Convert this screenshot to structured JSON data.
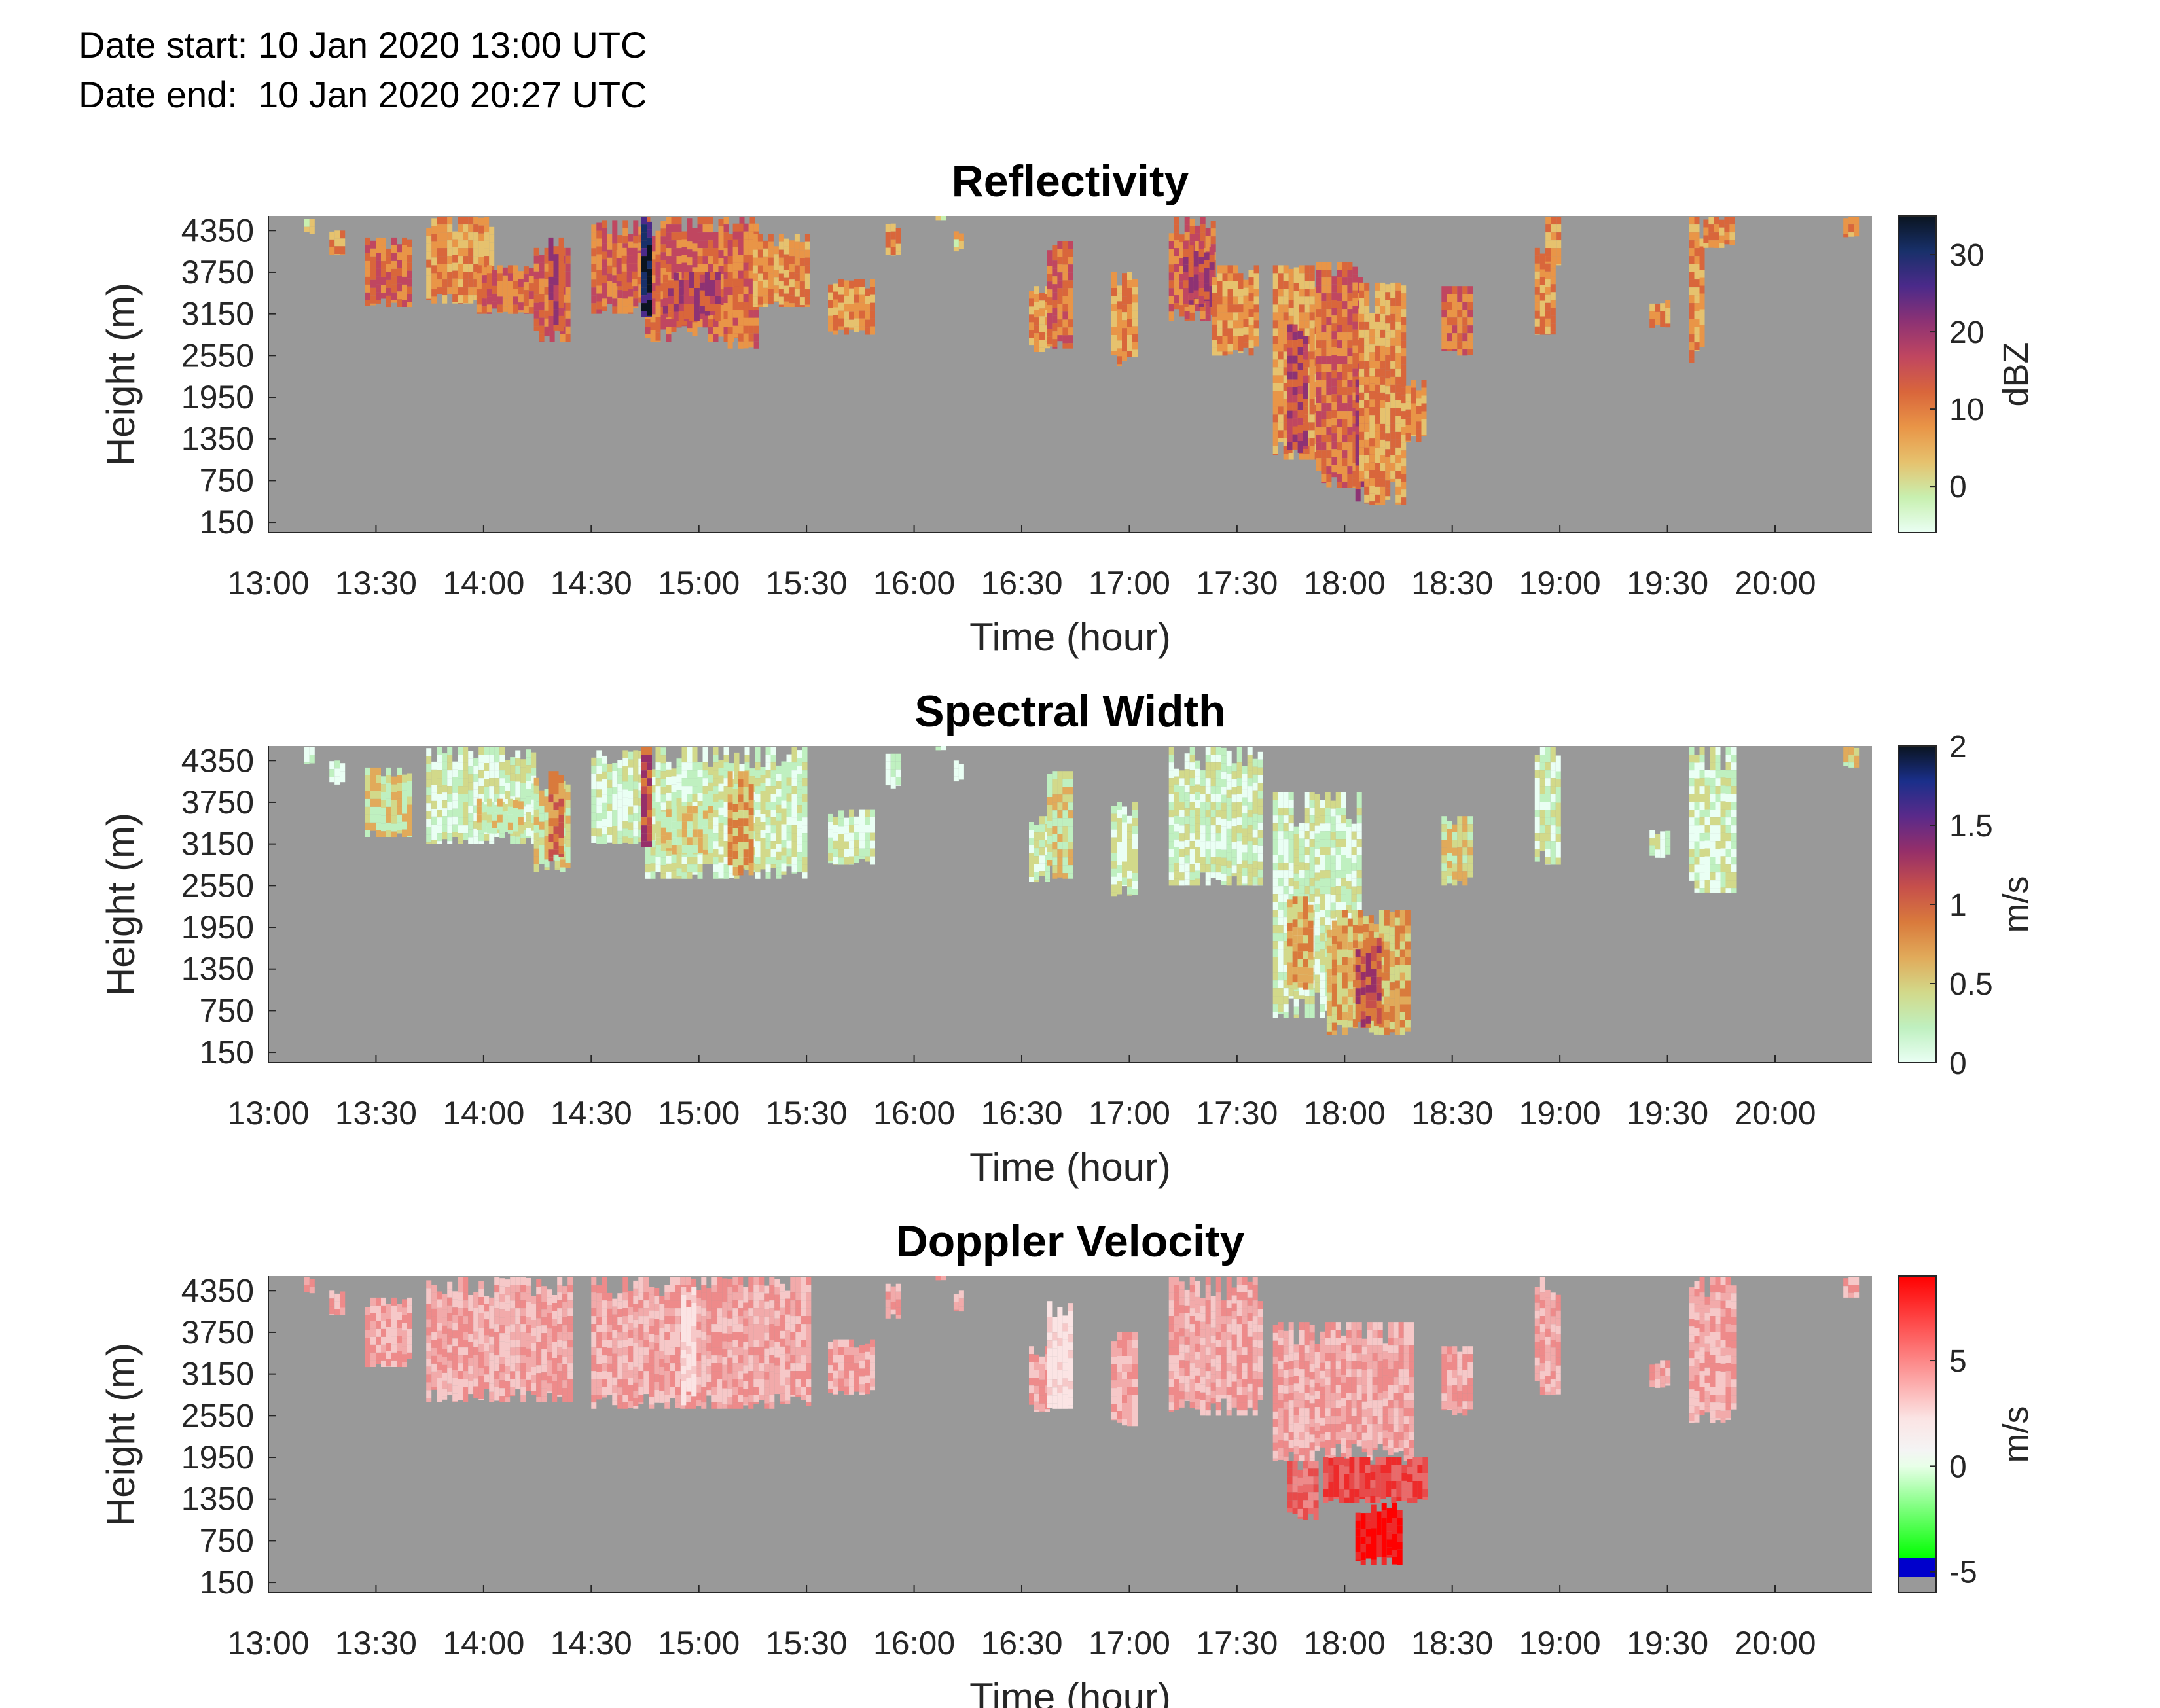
{
  "header": {
    "date_start": "Date start: 10 Jan 2020 13:00 UTC",
    "date_end": "Date end:  10 Jan 2020 20:27 UTC"
  },
  "chart_data": [
    {
      "type": "heatmap",
      "title": "Reflectivity",
      "xlabel": "Time (hour)",
      "ylabel": "Height (m)",
      "x_ticks": [
        "13:00",
        "13:30",
        "14:00",
        "14:30",
        "15:00",
        "15:30",
        "16:00",
        "16:30",
        "17:00",
        "17:30",
        "18:00",
        "18:30",
        "19:00",
        "19:30",
        "20:00"
      ],
      "y_ticks": [
        "150",
        "750",
        "1350",
        "1950",
        "2550",
        "3150",
        "3750",
        "4350"
      ],
      "colorbar": {
        "label": "dBZ",
        "ticks": [
          "0",
          "10",
          "20",
          "30"
        ],
        "range": [
          -6,
          35
        ]
      },
      "background_color": "#999999",
      "colors": [
        "#eafff4",
        "#c8f0b0",
        "#e6c26e",
        "#e99547",
        "#d9663b",
        "#c04660",
        "#8d3274",
        "#4b2a8a",
        "#18306a",
        "#0a1420"
      ],
      "echoes": [
        {
          "t0": "13:10",
          "t1": "13:12",
          "h0": 4300,
          "h1": 4550,
          "v": 4
        },
        {
          "t0": "13:17",
          "t1": "13:20",
          "h0": 4000,
          "h1": 4350,
          "v": 8
        },
        {
          "t0": "13:27",
          "t1": "13:40",
          "h0": 3250,
          "h1": 4250,
          "v": 11
        },
        {
          "t0": "13:44",
          "t1": "14:02",
          "h0": 3300,
          "h1": 4550,
          "v": 9
        },
        {
          "t0": "13:58",
          "t1": "14:14",
          "h0": 3150,
          "h1": 3850,
          "v": 12
        },
        {
          "t0": "14:14",
          "t1": "14:24",
          "h0": 2750,
          "h1": 4100,
          "v": 13
        },
        {
          "t0": "14:18",
          "t1": "14:21",
          "h0": 2900,
          "h1": 4250,
          "v": 19
        },
        {
          "t0": "14:30",
          "t1": "14:45",
          "h0": 3150,
          "h1": 4500,
          "v": 10
        },
        {
          "t0": "14:37",
          "t1": "14:45",
          "h0": 3550,
          "h1": 4100,
          "v": 14
        },
        {
          "t0": "14:45",
          "t1": "15:15",
          "h0": 2750,
          "h1": 4550,
          "v": 13
        },
        {
          "t0": "14:50",
          "t1": "15:06",
          "h0": 3050,
          "h1": 3750,
          "v": 19
        },
        {
          "t0": "14:44",
          "t1": "14:46",
          "h0": 3100,
          "h1": 4550,
          "v": 30
        },
        {
          "t0": "15:08",
          "t1": "15:16",
          "h0": 2650,
          "h1": 4450,
          "v": 13
        },
        {
          "t0": "15:15",
          "t1": "15:30",
          "h0": 3250,
          "h1": 4300,
          "v": 9
        },
        {
          "t0": "15:36",
          "t1": "15:48",
          "h0": 2850,
          "h1": 3650,
          "v": 8
        },
        {
          "t0": "15:52",
          "t1": "15:56",
          "h0": 3950,
          "h1": 4450,
          "v": 6
        },
        {
          "t0": "16:06",
          "t1": "16:08",
          "h0": 4500,
          "h1": 4560,
          "v": 3
        },
        {
          "t0": "16:11",
          "t1": "16:13",
          "h0": 4050,
          "h1": 4350,
          "v": 3
        },
        {
          "t0": "16:32",
          "t1": "16:37",
          "h0": 2600,
          "h1": 3550,
          "v": 6
        },
        {
          "t0": "16:37",
          "t1": "16:43",
          "h0": 2650,
          "h1": 4200,
          "v": 13
        },
        {
          "t0": "16:55",
          "t1": "17:01",
          "h0": 2400,
          "h1": 3750,
          "v": 8
        },
        {
          "t0": "17:11",
          "t1": "17:23",
          "h0": 3050,
          "h1": 4550,
          "v": 12
        },
        {
          "t0": "17:15",
          "t1": "17:23",
          "h0": 3250,
          "h1": 4200,
          "v": 19
        },
        {
          "t0": "17:23",
          "t1": "17:36",
          "h0": 2550,
          "h1": 3850,
          "v": 8
        },
        {
          "t0": "17:40",
          "t1": "17:52",
          "h0": 1050,
          "h1": 3850,
          "v": 9
        },
        {
          "t0": "17:44",
          "t1": "17:49",
          "h0": 1150,
          "h1": 3000,
          "v": 17
        },
        {
          "t0": "17:52",
          "t1": "18:04",
          "h0": 650,
          "h1": 3900,
          "v": 10
        },
        {
          "t0": "18:03",
          "t1": "18:08",
          "h0": 450,
          "h1": 2400,
          "v": 16
        },
        {
          "t0": "18:04",
          "t1": "18:17",
          "h0": 400,
          "h1": 3600,
          "v": 9
        },
        {
          "t0": "18:17",
          "t1": "18:22",
          "h0": 1300,
          "h1": 2200,
          "v": 6
        },
        {
          "t0": "18:27",
          "t1": "18:35",
          "h0": 2550,
          "h1": 3550,
          "v": 10
        },
        {
          "t0": "18:53",
          "t1": "18:58",
          "h0": 2850,
          "h1": 4100,
          "v": 7
        },
        {
          "t0": "18:56",
          "t1": "19:00",
          "h0": 3850,
          "h1": 4550,
          "v": 6
        },
        {
          "t0": "19:25",
          "t1": "19:30",
          "h0": 2950,
          "h1": 3350,
          "v": 8
        },
        {
          "t0": "19:36",
          "t1": "19:40",
          "h0": 2450,
          "h1": 4550,
          "v": 8
        },
        {
          "t0": "19:40",
          "t1": "19:48",
          "h0": 4100,
          "h1": 4550,
          "v": 9
        },
        {
          "t0": "20:19",
          "t1": "20:22",
          "h0": 4250,
          "h1": 4550,
          "v": 9
        }
      ]
    },
    {
      "type": "heatmap",
      "title": "Spectral Width",
      "xlabel": "Time (hour)",
      "ylabel": "Height (m)",
      "x_ticks": [
        "13:00",
        "13:30",
        "14:00",
        "14:30",
        "15:00",
        "15:30",
        "16:00",
        "16:30",
        "17:00",
        "17:30",
        "18:00",
        "18:30",
        "19:00",
        "19:30",
        "20:00"
      ],
      "y_ticks": [
        "150",
        "750",
        "1350",
        "1950",
        "2550",
        "3150",
        "3750",
        "4350"
      ],
      "colorbar": {
        "label": "m/s",
        "ticks": [
          "0",
          "0.5",
          "1",
          "1.5",
          "2"
        ],
        "range": [
          0,
          2
        ]
      },
      "background_color": "#999999",
      "colors": [
        "#eafff4",
        "#bff0c0",
        "#d2d98a",
        "#e1aa5a",
        "#d97a3c",
        "#c64f4b",
        "#962f69",
        "#5a2a8a",
        "#1a2f8a",
        "#0a1420"
      ],
      "echoes": [
        {
          "t0": "13:10",
          "t1": "13:12",
          "h0": 4300,
          "h1": 4550,
          "v": 0.1
        },
        {
          "t0": "13:17",
          "t1": "13:20",
          "h0": 4000,
          "h1": 4350,
          "v": 0.1
        },
        {
          "t0": "13:27",
          "t1": "13:40",
          "h0": 3250,
          "h1": 4250,
          "v": 0.35
        },
        {
          "t0": "13:44",
          "t1": "14:14",
          "h0": 3150,
          "h1": 4550,
          "v": 0.25
        },
        {
          "t0": "13:58",
          "t1": "14:10",
          "h0": 3300,
          "h1": 3800,
          "v": 0.4
        },
        {
          "t0": "14:14",
          "t1": "14:24",
          "h0": 2750,
          "h1": 4100,
          "v": 0.55
        },
        {
          "t0": "14:18",
          "t1": "14:21",
          "h0": 2900,
          "h1": 4200,
          "v": 0.8
        },
        {
          "t0": "14:30",
          "t1": "14:45",
          "h0": 3150,
          "h1": 4500,
          "v": 0.2
        },
        {
          "t0": "14:45",
          "t1": "15:30",
          "h0": 2650,
          "h1": 4550,
          "v": 0.3
        },
        {
          "t0": "14:48",
          "t1": "15:04",
          "h0": 3000,
          "h1": 3700,
          "v": 0.55
        },
        {
          "t0": "14:44",
          "t1": "14:46",
          "h0": 3100,
          "h1": 4550,
          "v": 1.2
        },
        {
          "t0": "15:08",
          "t1": "15:14",
          "h0": 2700,
          "h1": 4200,
          "v": 0.6
        },
        {
          "t0": "15:36",
          "t1": "15:48",
          "h0": 2850,
          "h1": 3650,
          "v": 0.15
        },
        {
          "t0": "15:52",
          "t1": "15:56",
          "h0": 3950,
          "h1": 4450,
          "v": 0.1
        },
        {
          "t0": "16:06",
          "t1": "16:08",
          "h0": 4500,
          "h1": 4560,
          "v": 0.1
        },
        {
          "t0": "16:11",
          "t1": "16:13",
          "h0": 4050,
          "h1": 4350,
          "v": 0.1
        },
        {
          "t0": "16:32",
          "t1": "16:37",
          "h0": 2600,
          "h1": 3550,
          "v": 0.15
        },
        {
          "t0": "16:37",
          "t1": "16:43",
          "h0": 2650,
          "h1": 4200,
          "v": 0.5
        },
        {
          "t0": "16:55",
          "t1": "17:01",
          "h0": 2400,
          "h1": 3750,
          "v": 0.15
        },
        {
          "t0": "17:11",
          "t1": "17:36",
          "h0": 2550,
          "h1": 4550,
          "v": 0.3
        },
        {
          "t0": "17:40",
          "t1": "18:04",
          "h0": 650,
          "h1": 3900,
          "v": 0.25
        },
        {
          "t0": "17:44",
          "t1": "17:50",
          "h0": 1050,
          "h1": 2400,
          "v": 0.7
        },
        {
          "t0": "17:55",
          "t1": "18:18",
          "h0": 400,
          "h1": 2200,
          "v": 0.6
        },
        {
          "t0": "18:03",
          "t1": "18:09",
          "h0": 500,
          "h1": 1800,
          "v": 1.0
        },
        {
          "t0": "18:27",
          "t1": "18:35",
          "h0": 2550,
          "h1": 3550,
          "v": 0.35
        },
        {
          "t0": "18:53",
          "t1": "19:00",
          "h0": 2850,
          "h1": 4550,
          "v": 0.15
        },
        {
          "t0": "19:25",
          "t1": "19:30",
          "h0": 2950,
          "h1": 3350,
          "v": 0.2
        },
        {
          "t0": "19:36",
          "t1": "19:48",
          "h0": 2450,
          "h1": 4550,
          "v": 0.15
        },
        {
          "t0": "20:19",
          "t1": "20:22",
          "h0": 4250,
          "h1": 4550,
          "v": 0.35
        }
      ]
    },
    {
      "type": "heatmap",
      "title": "Doppler Velocity",
      "xlabel": "Time (hour)",
      "ylabel": "Height (m)",
      "x_ticks": [
        "13:00",
        "13:30",
        "14:00",
        "14:30",
        "15:00",
        "15:30",
        "16:00",
        "16:30",
        "17:00",
        "17:30",
        "18:00",
        "18:30",
        "19:00",
        "19:30",
        "20:00"
      ],
      "y_ticks": [
        "150",
        "750",
        "1350",
        "1950",
        "2550",
        "3150",
        "3750",
        "4350"
      ],
      "colorbar": {
        "label": "m/s",
        "ticks": [
          "5",
          "0",
          "-5"
        ],
        "range": [
          -6,
          9
        ]
      },
      "background_color": "#999999",
      "colors": [
        "#fbe4e4",
        "#f6c8c8",
        "#f2aaaa",
        "#ee8a8a",
        "#ea6a6a",
        "#e84a4a",
        "#ee2a2a",
        "#ff0000"
      ],
      "echoes": [
        {
          "t0": "13:10",
          "t1": "13:12",
          "h0": 4300,
          "h1": 4550,
          "v": 1.5
        },
        {
          "t0": "13:17",
          "t1": "13:20",
          "h0": 4000,
          "h1": 4350,
          "v": 1.5
        },
        {
          "t0": "13:27",
          "t1": "13:40",
          "h0": 3250,
          "h1": 4250,
          "v": 1.8
        },
        {
          "t0": "13:44",
          "t1": "14:24",
          "h0": 2750,
          "h1": 4550,
          "v": 1.5
        },
        {
          "t0": "14:30",
          "t1": "15:30",
          "h0": 2650,
          "h1": 4550,
          "v": 1.6
        },
        {
          "t0": "14:55",
          "t1": "14:58",
          "h0": 2700,
          "h1": 4400,
          "v": 0.3
        },
        {
          "t0": "15:36",
          "t1": "15:48",
          "h0": 2850,
          "h1": 3650,
          "v": 1.8
        },
        {
          "t0": "15:52",
          "t1": "15:56",
          "h0": 3950,
          "h1": 4450,
          "v": 1.8
        },
        {
          "t0": "16:06",
          "t1": "16:08",
          "h0": 4500,
          "h1": 4560,
          "v": 1.8
        },
        {
          "t0": "16:11",
          "t1": "16:13",
          "h0": 4050,
          "h1": 4350,
          "v": 1.8
        },
        {
          "t0": "16:32",
          "t1": "16:37",
          "h0": 2600,
          "h1": 3550,
          "v": 1.8
        },
        {
          "t0": "16:37",
          "t1": "16:43",
          "h0": 2650,
          "h1": 4200,
          "v": 0.4
        },
        {
          "t0": "16:55",
          "t1": "17:01",
          "h0": 2400,
          "h1": 3750,
          "v": 2
        },
        {
          "t0": "17:11",
          "t1": "17:36",
          "h0": 2550,
          "h1": 4550,
          "v": 1.8
        },
        {
          "t0": "17:40",
          "t1": "18:18",
          "h0": 1900,
          "h1": 3900,
          "v": 1.3
        },
        {
          "t0": "17:44",
          "t1": "17:52",
          "h0": 1050,
          "h1": 1900,
          "v": 3.5
        },
        {
          "t0": "17:54",
          "t1": "18:22",
          "h0": 1300,
          "h1": 1950,
          "v": 4.5
        },
        {
          "t0": "18:03",
          "t1": "18:16",
          "h0": 400,
          "h1": 1300,
          "v": 6
        },
        {
          "t0": "18:27",
          "t1": "18:35",
          "h0": 2550,
          "h1": 3550,
          "v": 2
        },
        {
          "t0": "18:53",
          "t1": "19:00",
          "h0": 2850,
          "h1": 4550,
          "v": 2
        },
        {
          "t0": "19:25",
          "t1": "19:30",
          "h0": 2950,
          "h1": 3350,
          "v": 2
        },
        {
          "t0": "19:36",
          "t1": "19:48",
          "h0": 2450,
          "h1": 4550,
          "v": 2
        },
        {
          "t0": "20:19",
          "t1": "20:22",
          "h0": 4250,
          "h1": 4550,
          "v": 2
        }
      ]
    }
  ]
}
